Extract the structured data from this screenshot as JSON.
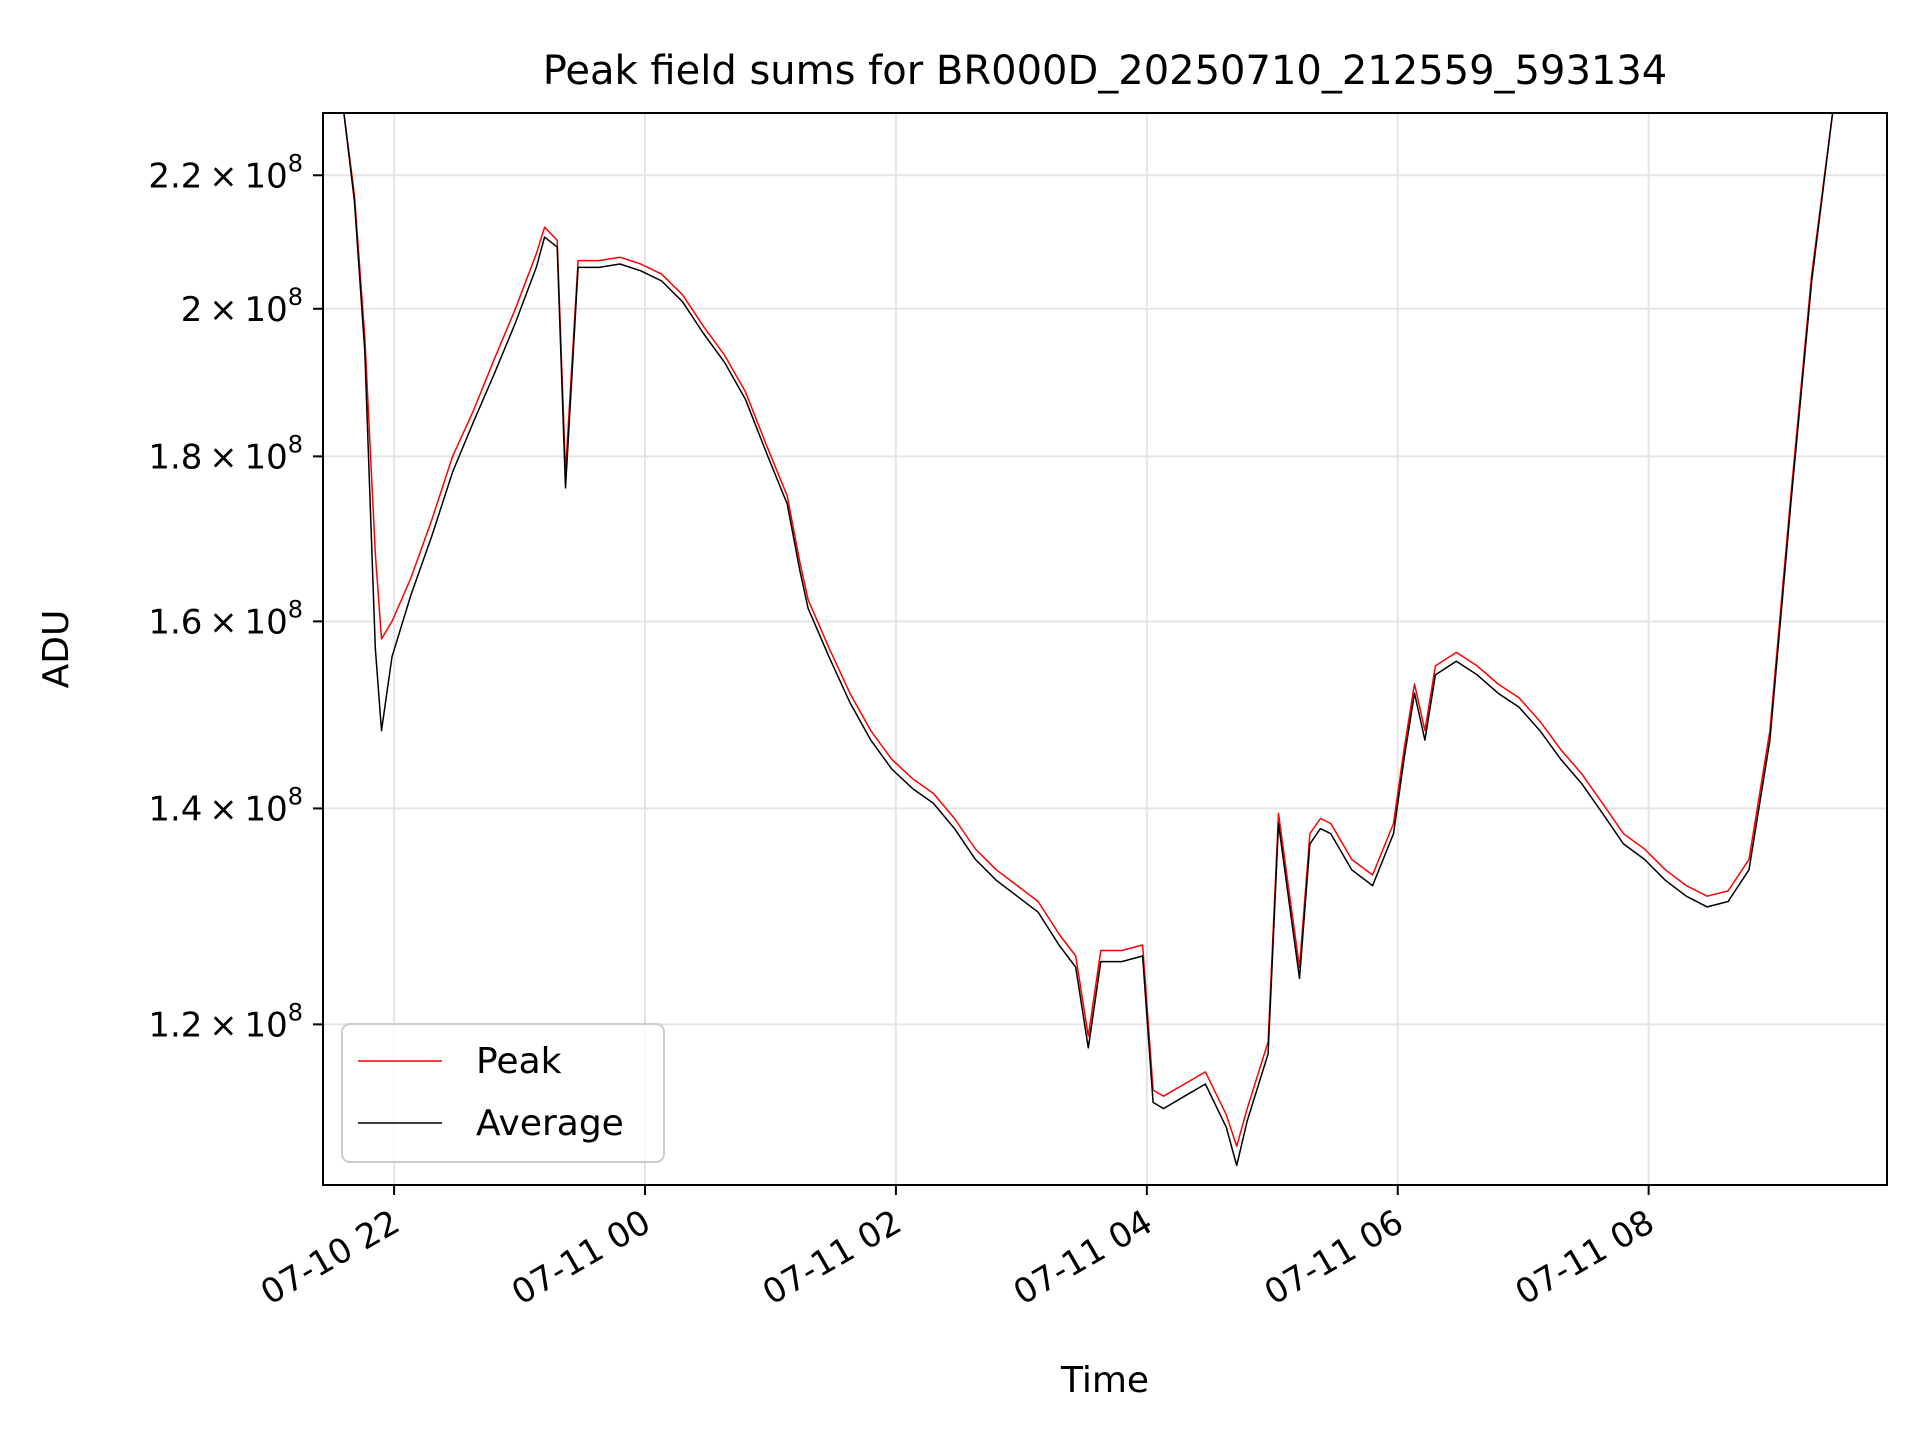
{
  "chart_data": {
    "type": "line",
    "title": "Peak field sums for BR000D_20250710_212559_593134",
    "xlabel": "Time",
    "ylabel": "ADU",
    "yscale": "log",
    "grid": true,
    "legend_position": "lower-left",
    "xlim": [
      "2025-07-10 21:26",
      "2025-07-11 09:54"
    ],
    "ylim": [
      107000000,
      230000000
    ],
    "x_ticks": [
      {
        "value": "2025-07-10 22:00",
        "label": "07-10 22"
      },
      {
        "value": "2025-07-11 00:00",
        "label": "07-11 00"
      },
      {
        "value": "2025-07-11 02:00",
        "label": "07-11 02"
      },
      {
        "value": "2025-07-11 04:00",
        "label": "07-11 04"
      },
      {
        "value": "2025-07-11 06:00",
        "label": "07-11 06"
      },
      {
        "value": "2025-07-11 08:00",
        "label": "07-11 08"
      }
    ],
    "y_ticks": [
      {
        "value": 120000000,
        "mantissa": "1.2",
        "exp": "8"
      },
      {
        "value": 140000000,
        "mantissa": "1.4",
        "exp": "8"
      },
      {
        "value": 160000000,
        "mantissa": "1.6",
        "exp": "8"
      },
      {
        "value": 180000000,
        "mantissa": "1.8",
        "exp": "8"
      },
      {
        "value": 200000000,
        "mantissa": "2",
        "exp": "8"
      },
      {
        "value": 220000000,
        "mantissa": "2.2",
        "exp": "8"
      }
    ],
    "series": [
      {
        "name": "Peak",
        "color": "#ff0000",
        "x": [
          "2025-07-10 21:26",
          "2025-07-10 21:36",
          "2025-07-10 21:41",
          "2025-07-10 21:46",
          "2025-07-10 21:51",
          "2025-07-10 21:54",
          "2025-07-10 21:59",
          "2025-07-10 22:08",
          "2025-07-10 22:18",
          "2025-07-10 22:28",
          "2025-07-10 22:38",
          "2025-07-10 22:48",
          "2025-07-10 22:58",
          "2025-07-10 23:08",
          "2025-07-10 23:12",
          "2025-07-10 23:18",
          "2025-07-10 23:22",
          "2025-07-10 23:28",
          "2025-07-10 23:38",
          "2025-07-10 23:48",
          "2025-07-10 23:58",
          "2025-07-11 00:08",
          "2025-07-11 00:18",
          "2025-07-11 00:28",
          "2025-07-11 00:38",
          "2025-07-11 00:48",
          "2025-07-11 00:58",
          "2025-07-11 01:08",
          "2025-07-11 01:14",
          "2025-07-11 01:18",
          "2025-07-11 01:28",
          "2025-07-11 01:38",
          "2025-07-11 01:48",
          "2025-07-11 01:58",
          "2025-07-11 02:08",
          "2025-07-11 02:18",
          "2025-07-11 02:28",
          "2025-07-11 02:38",
          "2025-07-11 02:48",
          "2025-07-11 02:58",
          "2025-07-11 03:08",
          "2025-07-11 03:18",
          "2025-07-11 03:26",
          "2025-07-11 03:32",
          "2025-07-11 03:38",
          "2025-07-11 03:48",
          "2025-07-11 03:58",
          "2025-07-11 04:03",
          "2025-07-11 04:08",
          "2025-07-11 04:18",
          "2025-07-11 04:28",
          "2025-07-11 04:38",
          "2025-07-11 04:43",
          "2025-07-11 04:48",
          "2025-07-11 04:58",
          "2025-07-11 05:03",
          "2025-07-11 05:08",
          "2025-07-11 05:13",
          "2025-07-11 05:18",
          "2025-07-11 05:23",
          "2025-07-11 05:28",
          "2025-07-11 05:38",
          "2025-07-11 05:48",
          "2025-07-11 05:58",
          "2025-07-11 06:03",
          "2025-07-11 06:08",
          "2025-07-11 06:13",
          "2025-07-11 06:18",
          "2025-07-11 06:28",
          "2025-07-11 06:38",
          "2025-07-11 06:48",
          "2025-07-11 06:58",
          "2025-07-11 07:08",
          "2025-07-11 07:18",
          "2025-07-11 07:28",
          "2025-07-11 07:38",
          "2025-07-11 07:48",
          "2025-07-11 07:58",
          "2025-07-11 08:08",
          "2025-07-11 08:18",
          "2025-07-11 08:28",
          "2025-07-11 08:38",
          "2025-07-11 08:48",
          "2025-07-11 08:58",
          "2025-07-11 09:08",
          "2025-07-11 09:18",
          "2025-07-11 09:28",
          "2025-07-11 09:33",
          "2025-07-11 09:38",
          "2025-07-11 09:43",
          "2025-07-11 09:48",
          "2025-07-11 09:54"
        ],
        "values": [
          230000000,
          230000000,
          217000000,
          196000000,
          168000000,
          158000000,
          160000000,
          165000000,
          172000000,
          180000000,
          186000000,
          193000000,
          200000000,
          208000000,
          212000000,
          210000000,
          178000000,
          207000000,
          207000000,
          207500000,
          206500000,
          205000000,
          202000000,
          197500000,
          193500000,
          188500000,
          181500000,
          175000000,
          167000000,
          162500000,
          157000000,
          152000000,
          148000000,
          145000000,
          143000000,
          141500000,
          139000000,
          136000000,
          134000000,
          132500000,
          131000000,
          128000000,
          126000000,
          119000000,
          126500000,
          126500000,
          127000000,
          114500000,
          114000000,
          115000000,
          116000000,
          112500000,
          110000000,
          113000000,
          118500000,
          139500000,
          132000000,
          125000000,
          137500000,
          139000000,
          138500000,
          135000000,
          133500000,
          138500000,
          146000000,
          153000000,
          148000000,
          155000000,
          156500000,
          155000000,
          153000000,
          151500000,
          149000000,
          146000000,
          143500000,
          140500000,
          137500000,
          136000000,
          134000000,
          132500000,
          131500000,
          132000000,
          135000000,
          148000000,
          175000000,
          205000000,
          230000000,
          230000000,
          230000000,
          230000000,
          230000000,
          230000000
        ]
      },
      {
        "name": "Average",
        "color": "#000000",
        "x": [
          "2025-07-10 21:26",
          "2025-07-10 21:36",
          "2025-07-10 21:41",
          "2025-07-10 21:46",
          "2025-07-10 21:51",
          "2025-07-10 21:54",
          "2025-07-10 21:59",
          "2025-07-10 22:08",
          "2025-07-10 22:18",
          "2025-07-10 22:28",
          "2025-07-10 22:38",
          "2025-07-10 22:48",
          "2025-07-10 22:58",
          "2025-07-10 23:08",
          "2025-07-10 23:12",
          "2025-07-10 23:18",
          "2025-07-10 23:22",
          "2025-07-10 23:28",
          "2025-07-10 23:38",
          "2025-07-10 23:48",
          "2025-07-10 23:58",
          "2025-07-11 00:08",
          "2025-07-11 00:18",
          "2025-07-11 00:28",
          "2025-07-11 00:38",
          "2025-07-11 00:48",
          "2025-07-11 00:58",
          "2025-07-11 01:08",
          "2025-07-11 01:14",
          "2025-07-11 01:18",
          "2025-07-11 01:28",
          "2025-07-11 01:38",
          "2025-07-11 01:48",
          "2025-07-11 01:58",
          "2025-07-11 02:08",
          "2025-07-11 02:18",
          "2025-07-11 02:28",
          "2025-07-11 02:38",
          "2025-07-11 02:48",
          "2025-07-11 02:58",
          "2025-07-11 03:08",
          "2025-07-11 03:18",
          "2025-07-11 03:26",
          "2025-07-11 03:32",
          "2025-07-11 03:38",
          "2025-07-11 03:48",
          "2025-07-11 03:58",
          "2025-07-11 04:03",
          "2025-07-11 04:08",
          "2025-07-11 04:18",
          "2025-07-11 04:28",
          "2025-07-11 04:38",
          "2025-07-11 04:43",
          "2025-07-11 04:48",
          "2025-07-11 04:58",
          "2025-07-11 05:03",
          "2025-07-11 05:08",
          "2025-07-11 05:13",
          "2025-07-11 05:18",
          "2025-07-11 05:23",
          "2025-07-11 05:28",
          "2025-07-11 05:38",
          "2025-07-11 05:48",
          "2025-07-11 05:58",
          "2025-07-11 06:03",
          "2025-07-11 06:08",
          "2025-07-11 06:13",
          "2025-07-11 06:18",
          "2025-07-11 06:28",
          "2025-07-11 06:38",
          "2025-07-11 06:48",
          "2025-07-11 06:58",
          "2025-07-11 07:08",
          "2025-07-11 07:18",
          "2025-07-11 07:28",
          "2025-07-11 07:38",
          "2025-07-11 07:48",
          "2025-07-11 07:58",
          "2025-07-11 08:08",
          "2025-07-11 08:18",
          "2025-07-11 08:28",
          "2025-07-11 08:38",
          "2025-07-11 08:48",
          "2025-07-11 08:58",
          "2025-07-11 09:08",
          "2025-07-11 09:18",
          "2025-07-11 09:28",
          "2025-07-11 09:33",
          "2025-07-11 09:38",
          "2025-07-11 09:43",
          "2025-07-11 09:48",
          "2025-07-11 09:54"
        ],
        "values": [
          230000000,
          230000000,
          216000000,
          194000000,
          157000000,
          148000000,
          156000000,
          163000000,
          170000000,
          178000000,
          184500000,
          191000000,
          198000000,
          206000000,
          210500000,
          209000000,
          176000000,
          206000000,
          206000000,
          206500000,
          205500000,
          204000000,
          201000000,
          196500000,
          192500000,
          187500000,
          180500000,
          174000000,
          166000000,
          161500000,
          156000000,
          151000000,
          147000000,
          144000000,
          142000000,
          140500000,
          138000000,
          135000000,
          133000000,
          131500000,
          130000000,
          127000000,
          125000000,
          118000000,
          125500000,
          125500000,
          126000000,
          113500000,
          113000000,
          114000000,
          115000000,
          111500000,
          108500000,
          112000000,
          117500000,
          138500000,
          131000000,
          124000000,
          136500000,
          138000000,
          137500000,
          134000000,
          132500000,
          137500000,
          145000000,
          152000000,
          147000000,
          154000000,
          155500000,
          154000000,
          152000000,
          150500000,
          148000000,
          145000000,
          142500000,
          139500000,
          136500000,
          135000000,
          133000000,
          131500000,
          130500000,
          131000000,
          134000000,
          147000000,
          174000000,
          204000000,
          230000000,
          230000000,
          230000000,
          230000000,
          230000000,
          230000000
        ]
      }
    ]
  }
}
